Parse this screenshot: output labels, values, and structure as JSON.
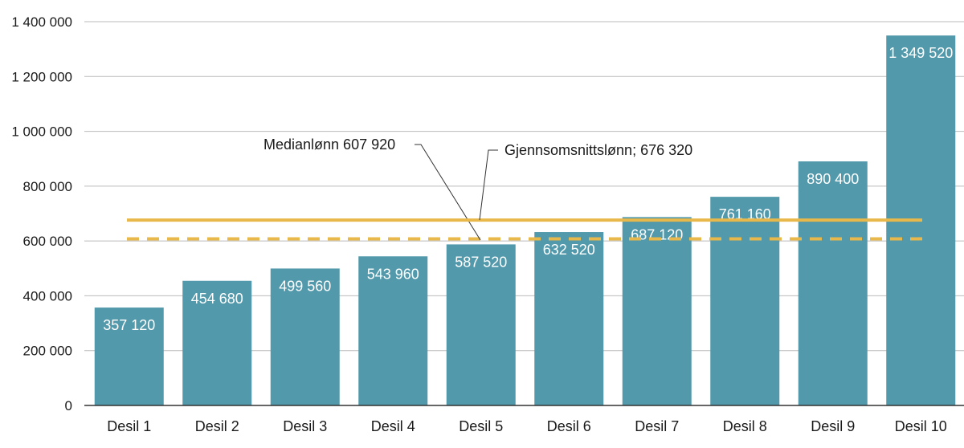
{
  "chart_data": {
    "type": "bar",
    "title": "",
    "xlabel": "",
    "ylabel": "",
    "categories": [
      "Desil 1",
      "Desil 2",
      "Desil 3",
      "Desil 4",
      "Desil 5",
      "Desil 6",
      "Desil 7",
      "Desil 8",
      "Desil 9",
      "Desil 10"
    ],
    "values": [
      357120,
      454680,
      499560,
      543960,
      587520,
      632520,
      687120,
      761160,
      890400,
      1349520
    ],
    "value_labels": [
      "357 120",
      "454 680",
      "499 560",
      "543 960",
      "587 520",
      "632 520",
      "687 120",
      "761 160",
      "890 400",
      "1 349 520"
    ],
    "ylim": [
      0,
      1400000
    ],
    "yticks": [
      0,
      200000,
      400000,
      600000,
      800000,
      1000000,
      1200000,
      1400000
    ],
    "ytick_labels": [
      "0",
      "200 000",
      "400 000",
      "600 000",
      "800 000",
      "1 000 000",
      "1 200 000",
      "1 400 000"
    ],
    "grid": "horizontal",
    "reference_lines": [
      {
        "label": "Medianlønn 607 920",
        "value": 607920,
        "style": "dashed",
        "color": "#e8b84a"
      },
      {
        "label": "Gjennsomsnittslønn; 676 320",
        "value": 676320,
        "style": "solid",
        "color": "#e8b84a"
      }
    ],
    "colors": {
      "bar": "#5299ab",
      "reference": "#e8b84a",
      "grid": "#bbbbbb",
      "axis": "#333333"
    }
  }
}
